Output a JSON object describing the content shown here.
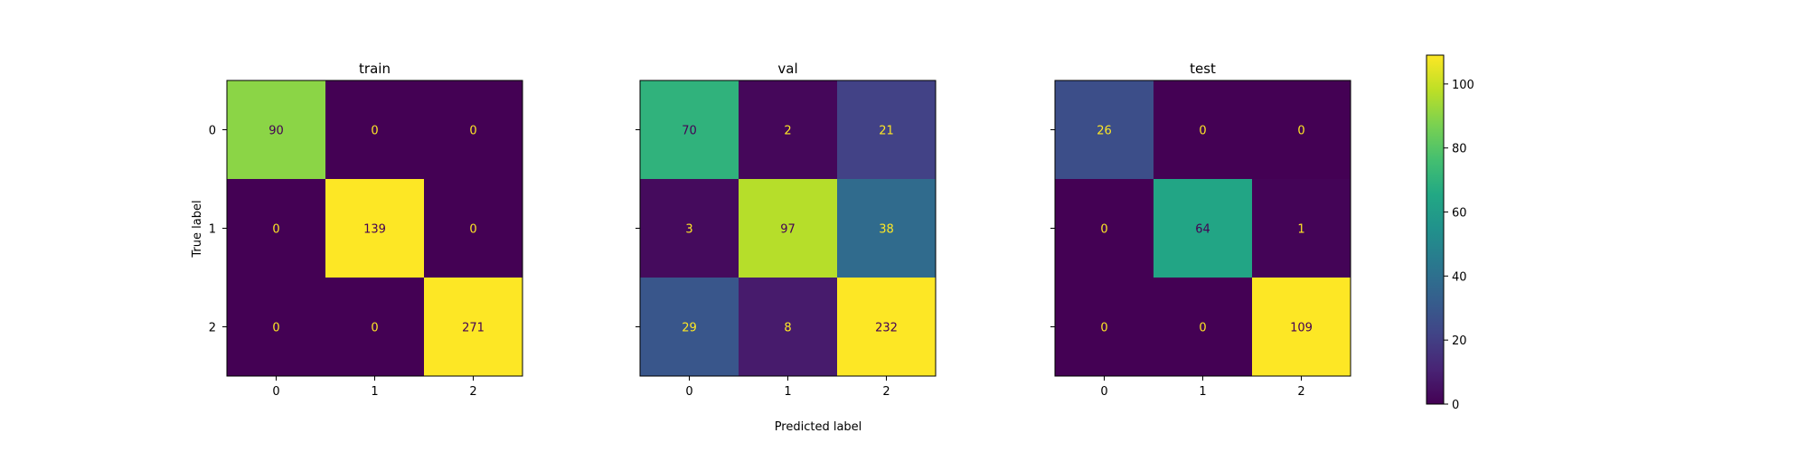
{
  "chart_data": {
    "type": "heatmap",
    "title": "",
    "xlabel": "Predicted label",
    "ylabel": "True label",
    "colormap": "viridis",
    "colors": {
      "low": "#440154",
      "high": "#fde725",
      "text_on_dark": "#fde725",
      "text_on_light": "#440154"
    },
    "categories": [
      "0",
      "1",
      "2"
    ],
    "panels": [
      {
        "title": "train",
        "matrix": [
          [
            90,
            0,
            0
          ],
          [
            0,
            139,
            0
          ],
          [
            0,
            0,
            271
          ]
        ]
      },
      {
        "title": "val",
        "matrix": [
          [
            70,
            2,
            21
          ],
          [
            3,
            97,
            38
          ],
          [
            29,
            8,
            232
          ]
        ]
      },
      {
        "title": "test",
        "matrix": [
          [
            26,
            0,
            0
          ],
          [
            0,
            64,
            1
          ],
          [
            0,
            0,
            109
          ]
        ]
      }
    ],
    "colorbar": {
      "range": [
        0,
        109
      ],
      "ticks": [
        0,
        20,
        40,
        60,
        80,
        100
      ]
    }
  }
}
